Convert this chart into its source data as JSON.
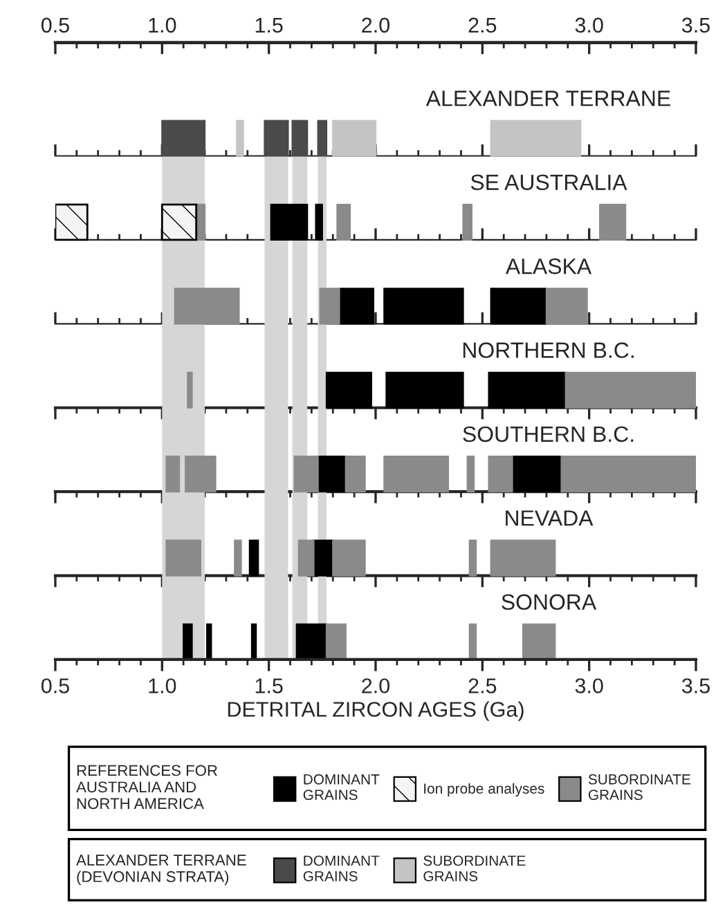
{
  "chart_data": {
    "type": "bar",
    "orientation": "horizontal",
    "xlabel": "DETRITAL ZIRCON AGES (Ga)",
    "categories": [
      "ALEXANDER TERRANE",
      "SE AUSTRALIA",
      "ALASKA",
      "NORTHERN B.C.",
      "SOUTHERN B.C.",
      "NEVADA",
      "SONORA"
    ],
    "xlim": [
      0.5,
      3.5
    ],
    "xticks": [
      {
        "value": 0.5,
        "label": "0.5"
      },
      {
        "value": 1.0,
        "label": "1.0"
      },
      {
        "value": 1.5,
        "label": "1.5"
      },
      {
        "value": 2.0,
        "label": "2.0"
      },
      {
        "value": 2.5,
        "label": "2.5"
      },
      {
        "value": 3.0,
        "label": "3.0"
      },
      {
        "value": 3.5,
        "label": "3.5"
      }
    ],
    "x2lim": [
      0.5,
      3.5
    ],
    "x2ticks": [
      {
        "value": 0.5,
        "label": "0.5"
      },
      {
        "value": 1.0,
        "label": "1.0"
      },
      {
        "value": 1.5,
        "label": "1.5"
      },
      {
        "value": 2.0,
        "label": "2.0"
      },
      {
        "value": 2.5,
        "label": "2.5"
      },
      {
        "value": 3.0,
        "label": "3.0"
      },
      {
        "value": 3.5,
        "label": "3.5"
      }
    ],
    "tick_labels": "x",
    "grid": false,
    "legend": "bottom",
    "bands": [
      {
        "axis": "x",
        "from": 1.0,
        "to": 1.2,
        "color": "#d6d6d6"
      },
      {
        "axis": "x",
        "from": 1.48,
        "to": 1.59,
        "color": "#d6d6d6"
      },
      {
        "axis": "x",
        "from": 1.61,
        "to": 1.68,
        "color": "#d6d6d6"
      },
      {
        "axis": "x",
        "from": 1.73,
        "to": 1.77,
        "color": "#d6d6d6"
      }
    ],
    "annotations": [
      "REFERENCES FOR\nAUSTRALIA AND\nNORTH AMERICA",
      "ALEXANDER TERRANE\n(DEVONIAN STRATA)"
    ],
    "series": [
      {
        "name": "DOMINANT\nGRAINS",
        "color": "#000000",
        "base": [
          null,
          1.51,
          1.83,
          1.77,
          1.73,
          1.41,
          1.1
        ],
        "values": [
          null,
          0.17,
          0.16,
          0.21,
          0.13,
          0.04,
          0.04
        ]
      },
      {
        "color": "#000000",
        "base": [
          null,
          1.72,
          2.04,
          2.05,
          2.64,
          1.71,
          1.21
        ],
        "values": [
          null,
          0.03,
          0.37,
          0.36,
          0.23,
          0.09,
          0.02
        ]
      },
      {
        "color": "#000000",
        "base": [
          null,
          null,
          2.54,
          2.53,
          null,
          null,
          1.42
        ],
        "values": [
          null,
          null,
          0.26,
          0.36,
          null,
          null,
          0.02
        ]
      },
      {
        "color": "#000000",
        "base": [
          null,
          null,
          null,
          null,
          null,
          null,
          1.63
        ],
        "values": [
          null,
          null,
          null,
          null,
          null,
          null,
          0.14
        ]
      },
      {
        "name": "Ion probe analyses",
        "color": "#f4f4f4",
        "base": [
          null,
          0.5,
          null,
          null,
          null,
          null,
          null
        ],
        "values": [
          null,
          0.15,
          null,
          null,
          null,
          null,
          null
        ]
      },
      {
        "color": "#f4f4f4",
        "base": [
          null,
          1.0,
          null,
          null,
          null,
          null,
          null
        ],
        "values": [
          null,
          0.16,
          null,
          null,
          null,
          null,
          null
        ]
      },
      {
        "name": "SUBORDINATE\nGRAINS",
        "color": "#8a8a8a",
        "base": [
          null,
          1.16,
          1.06,
          1.12,
          1.02,
          1.02,
          1.77
        ],
        "values": [
          null,
          0.04,
          0.3,
          0.02,
          0.06,
          0.16,
          0.09
        ]
      },
      {
        "color": "#8a8a8a",
        "base": [
          null,
          1.82,
          1.74,
          2.89,
          1.11,
          1.34,
          2.44
        ],
        "values": [
          null,
          0.06,
          0.09,
          0.61,
          0.14,
          0.03,
          0.03
        ]
      },
      {
        "color": "#8a8a8a",
        "base": [
          null,
          2.41,
          2.8,
          null,
          1.62,
          1.64,
          2.69
        ],
        "values": [
          null,
          0.04,
          0.19,
          null,
          0.11,
          0.07,
          0.15
        ]
      },
      {
        "color": "#8a8a8a",
        "base": [
          null,
          3.05,
          null,
          null,
          1.86,
          1.8,
          null
        ],
        "values": [
          null,
          0.12,
          null,
          null,
          0.09,
          0.15,
          null
        ]
      },
      {
        "color": "#8a8a8a",
        "base": [
          null,
          null,
          null,
          null,
          2.04,
          2.44,
          null
        ],
        "values": [
          null,
          null,
          null,
          null,
          0.3,
          0.03,
          null
        ]
      },
      {
        "color": "#8a8a8a",
        "base": [
          null,
          null,
          null,
          null,
          2.43,
          2.54,
          null
        ],
        "values": [
          null,
          null,
          null,
          null,
          0.03,
          0.3,
          null
        ]
      },
      {
        "color": "#8a8a8a",
        "base": [
          null,
          null,
          null,
          null,
          2.53,
          null,
          null
        ],
        "values": [
          null,
          null,
          null,
          null,
          0.11,
          null,
          null
        ]
      },
      {
        "color": "#8a8a8a",
        "base": [
          null,
          null,
          null,
          null,
          2.87,
          null,
          null
        ],
        "values": [
          null,
          null,
          null,
          null,
          0.63,
          null,
          null
        ]
      },
      {
        "name": "DOMINANT\nGRAINS",
        "color": "#4a4a4a",
        "base": [
          1.0,
          null,
          null,
          null,
          null,
          null,
          null
        ],
        "values": [
          0.2,
          null,
          null,
          null,
          null,
          null,
          null
        ]
      },
      {
        "color": "#4a4a4a",
        "base": [
          1.48,
          null,
          null,
          null,
          null,
          null,
          null
        ],
        "values": [
          0.11,
          null,
          null,
          null,
          null,
          null,
          null
        ]
      },
      {
        "color": "#4a4a4a",
        "base": [
          1.61,
          null,
          null,
          null,
          null,
          null,
          null
        ],
        "values": [
          0.07,
          null,
          null,
          null,
          null,
          null,
          null
        ]
      },
      {
        "color": "#4a4a4a",
        "base": [
          1.73,
          null,
          null,
          null,
          null,
          null,
          null
        ],
        "values": [
          0.04,
          null,
          null,
          null,
          null,
          null,
          null
        ]
      },
      {
        "name": "SUBORDINATE\nGRAINS",
        "color": "#c4c4c4",
        "base": [
          1.35,
          null,
          null,
          null,
          null,
          null,
          null
        ],
        "values": [
          0.03,
          null,
          null,
          null,
          null,
          null,
          null
        ]
      },
      {
        "color": "#c4c4c4",
        "base": [
          1.8,
          null,
          null,
          null,
          null,
          null,
          null
        ],
        "values": [
          0.2,
          null,
          null,
          null,
          null,
          null,
          null
        ]
      },
      {
        "color": "#c4c4c4",
        "base": [
          2.54,
          null,
          null,
          null,
          null,
          null,
          null
        ],
        "values": [
          0.42,
          null,
          null,
          null,
          null,
          null,
          null
        ]
      }
    ]
  }
}
